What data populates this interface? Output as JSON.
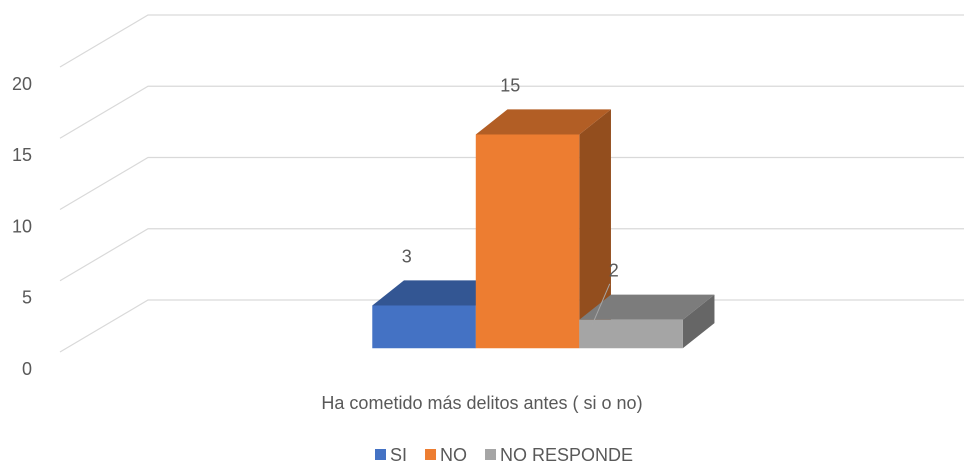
{
  "chart_data": {
    "type": "bar3d",
    "categories": [
      "Ha cometido más delitos antes ( si o no)"
    ],
    "series": [
      {
        "name": "SI",
        "color": "#4472c4",
        "values": [
          3
        ]
      },
      {
        "name": "NO",
        "color": "#ed7d31",
        "values": [
          15
        ]
      },
      {
        "name": "NO RESPONDE",
        "color": "#a5a5a5",
        "values": [
          2
        ]
      }
    ],
    "ylim": [
      0,
      20
    ],
    "yticks": [
      0,
      5,
      10,
      15,
      20
    ],
    "grid": true,
    "legend": "bottom"
  }
}
